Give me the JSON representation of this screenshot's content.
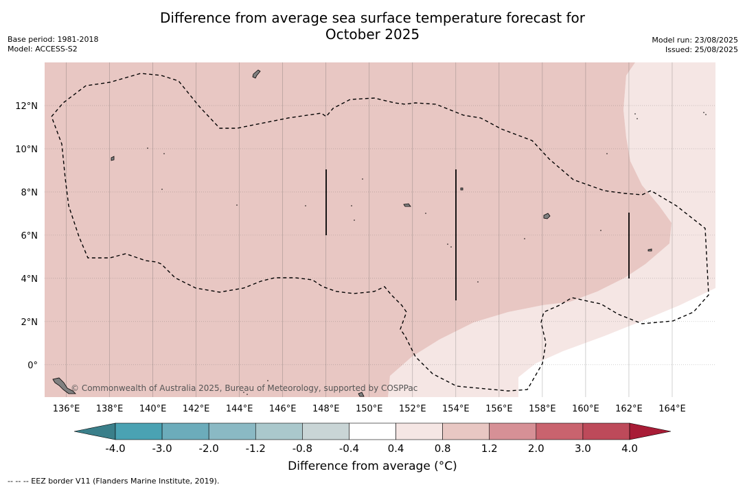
{
  "title": {
    "line1": "Difference from average sea surface temperature forecast for",
    "line2": "October 2025"
  },
  "meta_left": {
    "base_period": "Base period: 1981-2018",
    "model": "Model: ACCESS-S2"
  },
  "meta_right": {
    "model_run": "Model run: 23/08/2025",
    "issued": "Issued: 25/08/2025"
  },
  "map": {
    "lon_labels": [
      "136°E",
      "138°E",
      "140°E",
      "142°E",
      "144°E",
      "146°E",
      "148°E",
      "150°E",
      "152°E",
      "154°E",
      "156°E",
      "158°E",
      "160°E",
      "162°E",
      "164°E"
    ],
    "lat_labels": [
      "12°N",
      "10°N",
      "8°N",
      "6°N",
      "4°N",
      "2°N",
      "0°"
    ],
    "lon_range": [
      135,
      166
    ],
    "lat_range": [
      -1.5,
      14
    ],
    "grid": true,
    "credit": "© Commonwealth of Australia 2025, Bureau of Meteorology, supported by COSPPac",
    "colors": {
      "anomaly_0_8_to_1_2": "#e8c7c3",
      "anomaly_0_4_to_0_8": "#f5e6e4",
      "anomaly_neutral": "#ffffff",
      "land": "#808080",
      "eez_border": "#000000"
    }
  },
  "colorbar": {
    "title": "Difference from average (°C)",
    "tick_labels": [
      "-4.0",
      "-3.0",
      "-2.0",
      "-1.2",
      "-0.8",
      "-0.4",
      "0.4",
      "0.8",
      "1.2",
      "2.0",
      "3.0",
      "4.0"
    ],
    "colors": {
      "extend_low": "#3a7f8a",
      "bins": [
        "#4aa2b3",
        "#6cacbb",
        "#8ab9c4",
        "#aac8cc",
        "#c9d5d6",
        "#ffffff",
        "#f5e6e4",
        "#e8c7c3",
        "#d69096",
        "#c9636e",
        "#bd4a5a"
      ],
      "extend_high": "#a81c36"
    }
  },
  "footnote": "--  --  -- EEZ border V11 (Flanders Marine Institute, 2019)."
}
